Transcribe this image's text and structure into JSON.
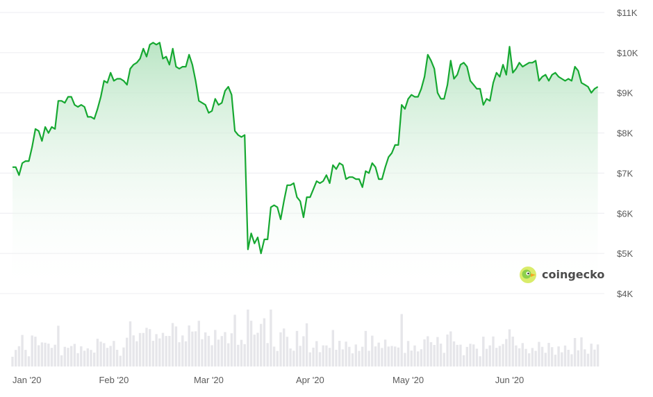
{
  "chart_data": {
    "type": "line",
    "title": "",
    "xlabel": "",
    "ylabel": "",
    "ylim": [
      4000,
      11000
    ],
    "y_ticks": [
      "$11K",
      "$10K",
      "$9K",
      "$8K",
      "$7K",
      "$6K",
      "$5K",
      "$4K"
    ],
    "y_tick_values": [
      11000,
      10000,
      9000,
      8000,
      7000,
      6000,
      5000,
      4000
    ],
    "x_ticks": [
      "Jan '20",
      "Feb '20",
      "Mar '20",
      "Apr '20",
      "May '20",
      "Jun '20"
    ],
    "x_tick_days": [
      0,
      31,
      60,
      91,
      121,
      152
    ],
    "x_range_days": [
      0,
      181
    ],
    "grid": true,
    "colors": {
      "line": "#16a831",
      "area_top": "#b7e4c2",
      "volume": "#e6e6ea",
      "grid": "#ececf0",
      "tick_text": "#5a5a5a"
    },
    "watermark": {
      "text": "coingecko",
      "icon": "coingecko-gecko-logo"
    },
    "series": [
      {
        "name": "",
        "x_start": "2020-01-01",
        "x_step_days": 1,
        "values": [
          7150,
          7150,
          6950,
          7250,
          7300,
          7300,
          7650,
          8100,
          8050,
          7800,
          8150,
          8000,
          8150,
          8100,
          8800,
          8800,
          8750,
          8900,
          8900,
          8700,
          8650,
          8700,
          8650,
          8400,
          8400,
          8350,
          8600,
          8900,
          9300,
          9250,
          9500,
          9300,
          9350,
          9350,
          9300,
          9200,
          9600,
          9700,
          9750,
          9850,
          10100,
          9900,
          10200,
          10250,
          10200,
          10250,
          9850,
          9900,
          9700,
          10100,
          9650,
          9600,
          9650,
          9650,
          9950,
          9700,
          9300,
          8800,
          8750,
          8700,
          8500,
          8550,
          8850,
          8700,
          8750,
          9050,
          9150,
          8950,
          8050,
          7950,
          7900,
          7950,
          5100,
          5500,
          5250,
          5400,
          5000,
          5350,
          5350,
          6150,
          6200,
          6150,
          5850,
          6300,
          6700,
          6700,
          6750,
          6400,
          6300,
          5900,
          6400,
          6400,
          6600,
          6800,
          6750,
          6800,
          6950,
          6750,
          7200,
          7100,
          7250,
          7200,
          6850,
          6900,
          6900,
          6850,
          6850,
          6650,
          7050,
          7000,
          7250,
          7150,
          6850,
          6850,
          7150,
          7400,
          7500,
          7700,
          7700,
          8700,
          8600,
          8850,
          8950,
          8900,
          8900,
          9100,
          9400,
          9950,
          9800,
          9600,
          9000,
          8850,
          8850,
          9200,
          9800,
          9350,
          9450,
          9700,
          9750,
          9650,
          9300,
          9200,
          9100,
          9100,
          8700,
          8850,
          8800,
          9250,
          9500,
          9400,
          9700,
          9450,
          10150,
          9500,
          9600,
          9750,
          9650,
          9700,
          9750,
          9750,
          9800,
          9300,
          9400,
          9450,
          9300,
          9450,
          9500,
          9400,
          9350,
          9300,
          9350,
          9300,
          9650,
          9550,
          9250,
          9200,
          9150,
          9000,
          9100,
          9150
        ]
      }
    ]
  }
}
